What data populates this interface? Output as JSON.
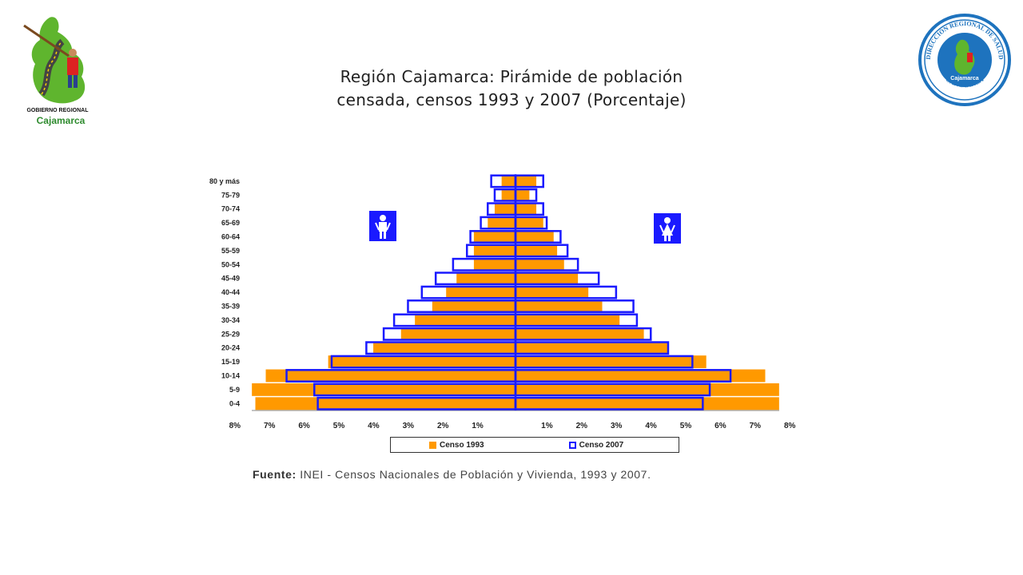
{
  "header": {
    "title_line1": "Región Cajamarca: Pirámide de población",
    "title_line2": "censada, censos 1993 y 2007 (Porcentaje)"
  },
  "logos": {
    "left_text1": "GOBIERNO REGIONAL",
    "left_text2": "Cajamarca",
    "right_text_top": "DIRECCIÓN REGIONAL DE SALUD",
    "right_text_bottom": "CAJAMARCA",
    "right_text_center": "Cajamarca"
  },
  "source": {
    "label": "Fuente:",
    "text": "INEI - Censos Nacionales de Población y Vivienda, 1993 y 2007."
  },
  "colors": {
    "censo_1993": "#ff9900",
    "censo_2007": "#1a1aff",
    "icon_bg": "#1a1aff"
  },
  "chart_data": {
    "type": "bar",
    "orientation": "population-pyramid",
    "categories": [
      "0-4",
      "5-9",
      "10-14",
      "15-19",
      "20-24",
      "25-29",
      "30-34",
      "35-39",
      "40-44",
      "45-49",
      "50-54",
      "55-59",
      "60-64",
      "65-69",
      "70-74",
      "75-79",
      "80 y más"
    ],
    "x_tick_labels": [
      "8%",
      "7%",
      "6%",
      "5%",
      "4%",
      "3%",
      "2%",
      "1%",
      "1%",
      "2%",
      "3%",
      "4%",
      "5%",
      "6%",
      "7%",
      "8%"
    ],
    "xlim": [
      -8,
      8
    ],
    "left_group_icon": "male-icon",
    "right_group_icon": "female-icon",
    "series": [
      {
        "name": "Censo 1993",
        "left": [
          7.5,
          7.6,
          7.2,
          5.4,
          4.1,
          3.3,
          2.9,
          2.4,
          2.0,
          1.7,
          1.2,
          1.2,
          1.2,
          0.8,
          0.6,
          0.4,
          0.4
        ],
        "right": [
          7.6,
          7.6,
          7.2,
          5.5,
          4.4,
          3.7,
          3.0,
          2.5,
          2.1,
          1.8,
          1.4,
          1.2,
          1.1,
          0.8,
          0.6,
          0.4,
          0.6
        ]
      },
      {
        "name": "Censo 2007",
        "left": [
          5.7,
          5.8,
          6.6,
          5.3,
          4.3,
          3.8,
          3.5,
          3.1,
          2.7,
          2.3,
          1.8,
          1.4,
          1.3,
          1.0,
          0.8,
          0.6,
          0.7
        ],
        "right": [
          5.4,
          5.6,
          6.2,
          5.1,
          4.4,
          3.9,
          3.5,
          3.4,
          2.9,
          2.4,
          1.8,
          1.5,
          1.3,
          0.9,
          0.8,
          0.6,
          0.8
        ]
      }
    ]
  }
}
